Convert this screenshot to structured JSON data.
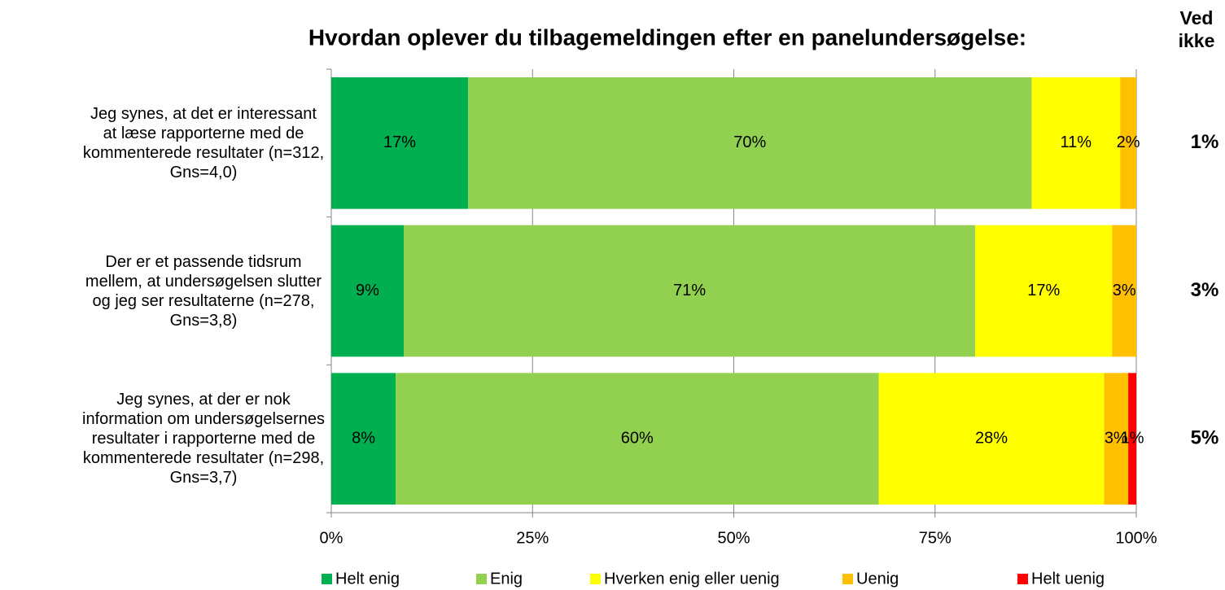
{
  "chart_data": {
    "type": "stacked_barh",
    "title": "Hvordan oplever du tilbagemeldingen efter en panelundersøgelse:",
    "categories": [
      "Jeg synes, at det er interessant at læse rapporterne med de kommenterede resultater (n=312, Gns=4,0)",
      "Der er et passende tidsrum mellem, at undersøgelsen slutter og jeg ser resultaterne (n=278, Gns=3,8)",
      "Jeg synes, at der er nok information om undersøgelsernes resultater i rapporterne med de kommenterede resultater (n=298, Gns=3,7)"
    ],
    "series": [
      {
        "name": "Helt enig",
        "color": "#00b050",
        "values": [
          17,
          9,
          8
        ],
        "value_labels": [
          "17%",
          "9%",
          "8%"
        ]
      },
      {
        "name": "Enig",
        "color": "#92d050",
        "values": [
          70,
          71,
          60
        ],
        "value_labels": [
          "70%",
          "71%",
          "60%"
        ]
      },
      {
        "name": "Hverken enig eller uenig",
        "color": "#ffff00",
        "values": [
          11,
          17,
          28
        ],
        "value_labels": [
          "11%",
          "17%",
          "28%"
        ]
      },
      {
        "name": "Uenig",
        "color": "#ffc000",
        "values": [
          2,
          3,
          3
        ],
        "value_labels": [
          "2%",
          "3%",
          "3%"
        ]
      },
      {
        "name": "Helt uenig",
        "color": "#ff0000",
        "values": [
          0,
          0,
          1
        ],
        "value_labels": [
          null,
          null,
          "1%"
        ]
      }
    ],
    "xlim": [
      0,
      100
    ],
    "xticks": [
      {
        "value": 0,
        "label": "0%"
      },
      {
        "value": 25,
        "label": "25%"
      },
      {
        "value": 50,
        "label": "50%"
      },
      {
        "value": 75,
        "label": "75%"
      },
      {
        "value": 100,
        "label": "100%"
      }
    ],
    "grid": true,
    "legend": "bottom",
    "ved_ikke": {
      "label": "Ved ikke",
      "values": [
        1,
        3,
        5
      ],
      "value_labels": [
        "1%",
        "3%",
        "5%"
      ]
    }
  }
}
